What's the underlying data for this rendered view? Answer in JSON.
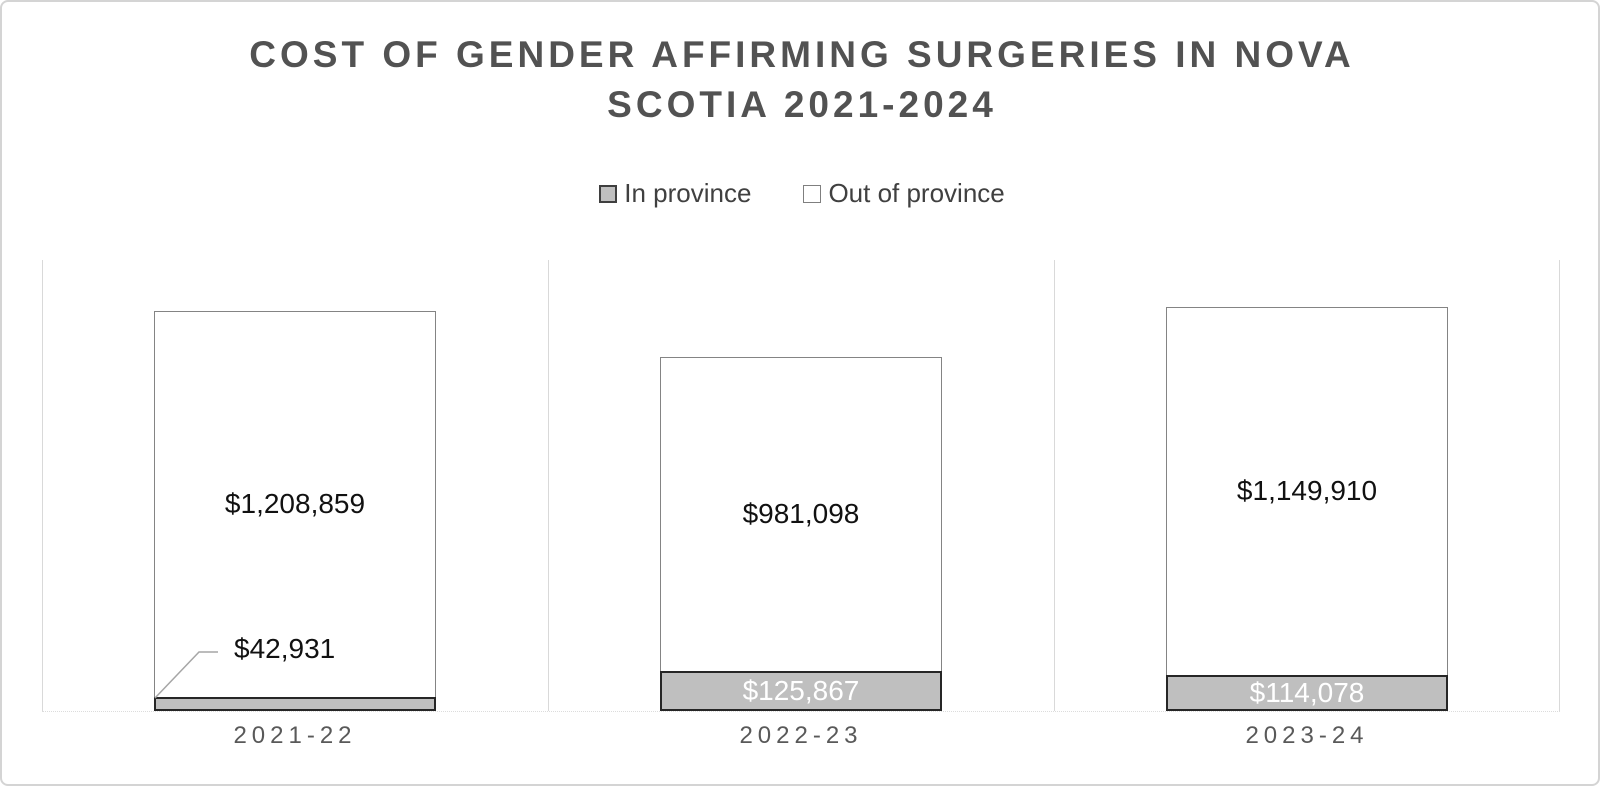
{
  "header": {
    "title_line1": "COST OF GENDER AFFIRMING SURGERIES IN NOVA",
    "title_line2": "SCOTIA 2021-2024"
  },
  "legend": {
    "items": [
      {
        "label": "In province",
        "swatch_fill": "#bfbfbf",
        "swatch_border": "#3f3f3f"
      },
      {
        "label": "Out of province",
        "swatch_fill": "#ffffff",
        "swatch_border": "#7f7f7f"
      }
    ]
  },
  "chart_data": {
    "type": "bar",
    "stacked": true,
    "title": "COST OF GENDER AFFIRMING SURGERIES IN NOVA SCOTIA 2021-2024",
    "categories": [
      "2021-22",
      "2022-23",
      "2023-24"
    ],
    "series": [
      {
        "name": "In province",
        "color": "#bfbfbf",
        "values": [
          42931,
          125867,
          114078
        ],
        "labels": [
          "$42,931",
          "$125,867",
          "$114,078"
        ],
        "label_color": "#ffffff",
        "label_notes": "2021-22 label shown as black callout with gray leader line because segment is too small"
      },
      {
        "name": "Out of province",
        "color": "#ffffff",
        "values": [
          1208859,
          981098,
          1149910
        ],
        "labels": [
          "$1,208,859",
          "$981,098",
          "$1,149,910"
        ],
        "label_color": "#111111"
      }
    ],
    "totals": [
      1251790,
      1106965,
      1263988
    ],
    "legend_position": "top",
    "y_axis_visible": false,
    "gridlines": "vertical light-gray separators between category slots, dotted baseline",
    "xlabel": "",
    "ylabel": ""
  },
  "colors": {
    "title_text": "#525252",
    "legend_text": "#404040",
    "category_text": "#595959",
    "in_fill": "#bfbfbf",
    "in_border": "#262626",
    "out_fill": "#ffffff",
    "out_border": "#848484",
    "gridline": "#d9d9d9",
    "leader_line": "#a6a6a6",
    "canvas_border": "#d4d4d4"
  }
}
